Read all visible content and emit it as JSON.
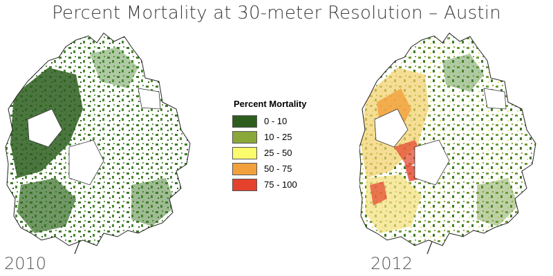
{
  "title": "Percent Mortality at 30-meter Resolution – Austin",
  "maps": [
    {
      "year": "2010"
    },
    {
      "year": "2012"
    }
  ],
  "legend": {
    "title": "Percent Mortality",
    "items": [
      {
        "label": "0 - 10",
        "color": "#2d5e1e"
      },
      {
        "label": "10 - 25",
        "color": "#8aa83a"
      },
      {
        "label": "25 - 50",
        "color": "#fbfb6e"
      },
      {
        "label": "50 - 75",
        "color": "#f2a03c"
      },
      {
        "label": "75 - 100",
        "color": "#e4422c"
      }
    ]
  }
}
